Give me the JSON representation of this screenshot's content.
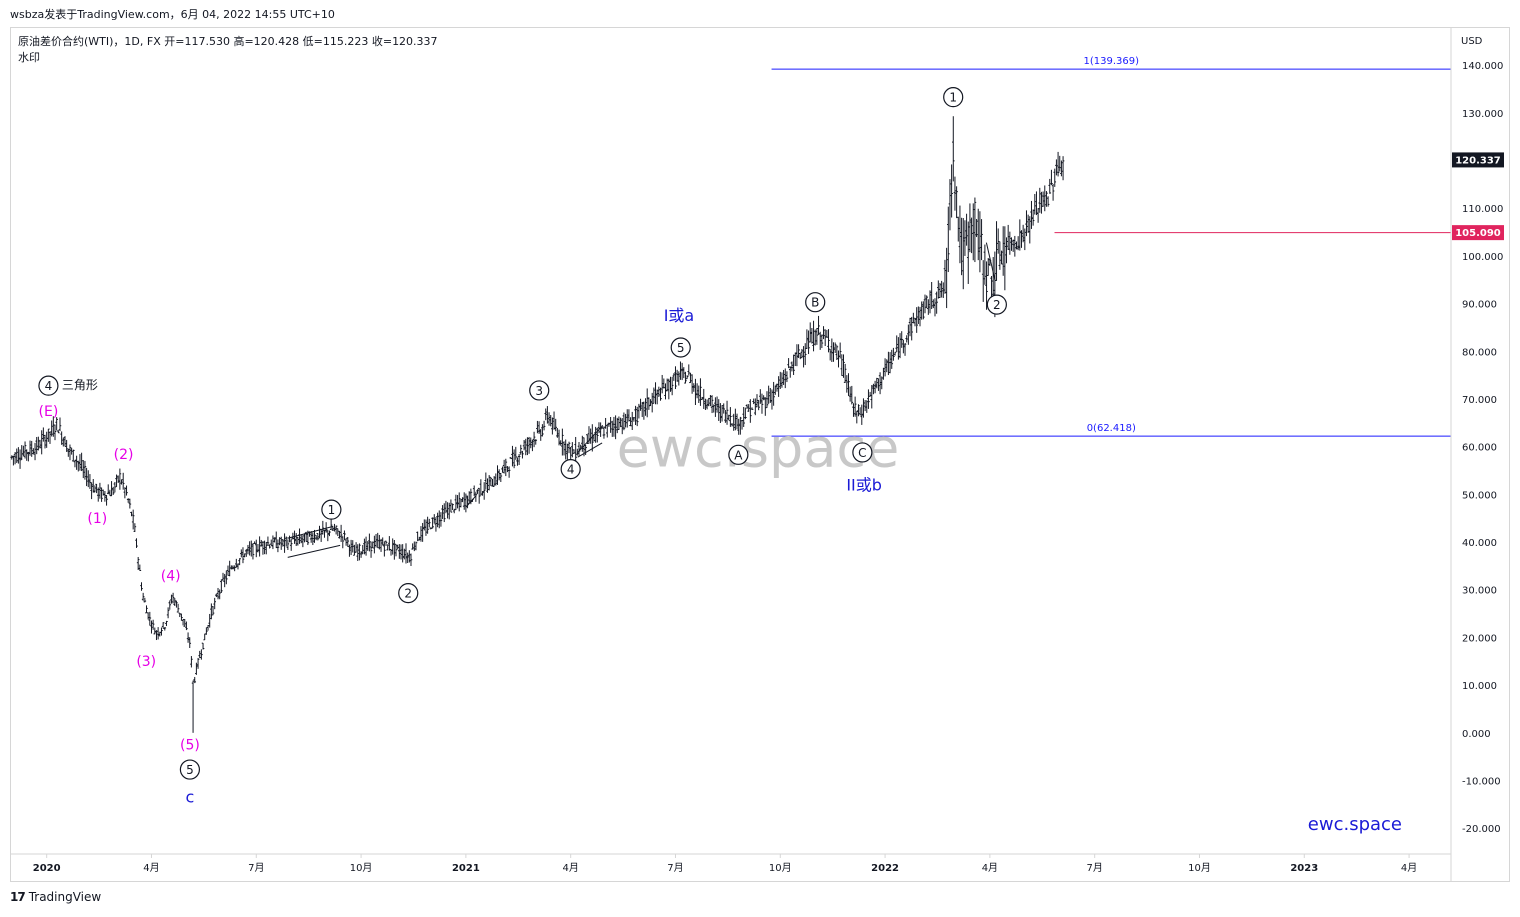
{
  "header": {
    "text": "wsbza发表于TradingView.com，6月 04, 2022 14:55 UTC+10"
  },
  "legend": {
    "line1": "原油差价合约(WTI)，1D, FX  开=117.530  高=120.428  低=115.223  收=120.337",
    "line2": "水印"
  },
  "footer": {
    "brand": "TradingView",
    "logo": "17"
  },
  "colors": {
    "fib": "#1a1aff",
    "price_line": "#e0245e",
    "magenta": "#e600e6",
    "blue_label": "#1a1ad6",
    "candle": "#131722",
    "watermark": "#c8c8c8"
  },
  "chart_data": {
    "type": "candlestick",
    "instrument": "原油差价合约(WTI)",
    "interval": "1D",
    "currency": "USD",
    "ylim": [
      -25,
      148
    ],
    "y_ticks": [
      "140.000",
      "130.000",
      "120.000",
      "110.000",
      "100.000",
      "90.000",
      "80.000",
      "70.000",
      "60.000",
      "50.000",
      "40.000",
      "30.000",
      "20.000",
      "10.000",
      "0.000",
      "-10.000",
      "-20.000"
    ],
    "y_tick_values": [
      140,
      130,
      120,
      110,
      100,
      90,
      80,
      70,
      60,
      50,
      40,
      30,
      20,
      10,
      0,
      -10,
      -20
    ],
    "x_ticks": [
      {
        "label": "2020",
        "t": 0,
        "bold": true
      },
      {
        "label": "4月",
        "t": 3,
        "bold": false
      },
      {
        "label": "7月",
        "t": 6,
        "bold": false
      },
      {
        "label": "10月",
        "t": 9,
        "bold": false
      },
      {
        "label": "2021",
        "t": 12,
        "bold": true
      },
      {
        "label": "4月",
        "t": 15,
        "bold": false
      },
      {
        "label": "7月",
        "t": 18,
        "bold": false
      },
      {
        "label": "10月",
        "t": 21,
        "bold": false
      },
      {
        "label": "2022",
        "t": 24,
        "bold": true
      },
      {
        "label": "4月",
        "t": 27,
        "bold": false
      },
      {
        "label": "7月",
        "t": 30,
        "bold": false
      },
      {
        "label": "10月",
        "t": 33,
        "bold": false
      },
      {
        "label": "2023",
        "t": 36,
        "bold": true
      },
      {
        "label": "4月",
        "t": 39,
        "bold": false
      }
    ],
    "x_range_months": [
      -1.05,
      40.2
    ],
    "price_path": [
      [
        -1.0,
        58
      ],
      [
        -0.3,
        60
      ],
      [
        0.1,
        63
      ],
      [
        0.3,
        65
      ],
      [
        0.6,
        60
      ],
      [
        1.0,
        56
      ],
      [
        1.3,
        52
      ],
      [
        1.6,
        50
      ],
      [
        1.9,
        51
      ],
      [
        2.1,
        54
      ],
      [
        2.3,
        50
      ],
      [
        2.5,
        44
      ],
      [
        2.65,
        35
      ],
      [
        2.75,
        29
      ],
      [
        2.95,
        24
      ],
      [
        3.15,
        21
      ],
      [
        3.4,
        23
      ],
      [
        3.6,
        29
      ],
      [
        3.9,
        24
      ],
      [
        4.1,
        19
      ],
      [
        4.2,
        10
      ],
      [
        4.3,
        14
      ],
      [
        4.45,
        18
      ],
      [
        4.7,
        25
      ],
      [
        5.0,
        31
      ],
      [
        5.3,
        35
      ],
      [
        5.7,
        38
      ],
      [
        6.0,
        39
      ],
      [
        6.3,
        40
      ],
      [
        6.8,
        40
      ],
      [
        7.4,
        41
      ],
      [
        7.9,
        42
      ],
      [
        8.2,
        43
      ],
      [
        8.55,
        41
      ],
      [
        8.8,
        38
      ],
      [
        9.1,
        39
      ],
      [
        9.5,
        40
      ],
      [
        9.9,
        39
      ],
      [
        10.2,
        38
      ],
      [
        10.4,
        37
      ],
      [
        10.6,
        41
      ],
      [
        11.0,
        44
      ],
      [
        11.5,
        47
      ],
      [
        12.0,
        49
      ],
      [
        12.4,
        51
      ],
      [
        12.8,
        53
      ],
      [
        13.3,
        57
      ],
      [
        13.8,
        61
      ],
      [
        14.2,
        64
      ],
      [
        14.35,
        67
      ],
      [
        14.6,
        63
      ],
      [
        14.9,
        60
      ],
      [
        15.1,
        59
      ],
      [
        15.4,
        61
      ],
      [
        15.8,
        63
      ],
      [
        16.3,
        65
      ],
      [
        16.8,
        66
      ],
      [
        17.3,
        70
      ],
      [
        17.8,
        73
      ],
      [
        18.1,
        75
      ],
      [
        18.4,
        75
      ],
      [
        18.6,
        72
      ],
      [
        18.9,
        70
      ],
      [
        19.2,
        68
      ],
      [
        19.5,
        67
      ],
      [
        19.8,
        65
      ],
      [
        20.1,
        68
      ],
      [
        20.6,
        70
      ],
      [
        21.0,
        73
      ],
      [
        21.4,
        78
      ],
      [
        21.8,
        82
      ],
      [
        22.1,
        84
      ],
      [
        22.4,
        82
      ],
      [
        22.7,
        79
      ],
      [
        22.95,
        73
      ],
      [
        23.1,
        68
      ],
      [
        23.3,
        67
      ],
      [
        23.6,
        71
      ],
      [
        24.0,
        76
      ],
      [
        24.4,
        81
      ],
      [
        24.8,
        86
      ],
      [
        25.2,
        90
      ],
      [
        25.5,
        92
      ],
      [
        25.75,
        94
      ],
      [
        25.85,
        110
      ],
      [
        25.95,
        123
      ],
      [
        26.05,
        112
      ],
      [
        26.2,
        100
      ],
      [
        26.4,
        104
      ],
      [
        26.55,
        109
      ],
      [
        26.7,
        102
      ],
      [
        26.9,
        97
      ],
      [
        27.1,
        95
      ],
      [
        27.3,
        101
      ],
      [
        27.6,
        103
      ],
      [
        27.9,
        104
      ],
      [
        28.2,
        108
      ],
      [
        28.4,
        111
      ],
      [
        28.7,
        113
      ],
      [
        28.9,
        118
      ],
      [
        29.1,
        120
      ]
    ],
    "last_price": {
      "label": "120.337",
      "value": 120.337
    },
    "price_line": {
      "label": "105.090",
      "value": 105.09,
      "from_t": 28.85
    },
    "fib_levels": [
      {
        "label": "1(139.369)",
        "value": 139.369,
        "from_t": 20.75
      },
      {
        "label": "0(62.418)",
        "value": 62.418,
        "from_t": 20.75
      }
    ],
    "trend_lines": [
      {
        "t1": 6.9,
        "v1": 41,
        "t2": 8.2,
        "v2": 43.5
      },
      {
        "t1": 6.9,
        "v1": 37,
        "t2": 8.4,
        "v2": 39.5
      },
      {
        "t1": 15.2,
        "v1": 59,
        "t2": 15.9,
        "v2": 64.5
      },
      {
        "t1": 15.2,
        "v1": 58,
        "t2": 15.9,
        "v2": 61
      },
      {
        "t1": 12.0,
        "v1": 47.5,
        "t2": 12.3,
        "v2": 50
      },
      {
        "t1": 26.9,
        "v1": 103,
        "t2": 27.15,
        "v2": 95
      }
    ],
    "annotations": [
      {
        "text": "4",
        "circle": true,
        "t": 0.05,
        "v": 73,
        "color": "#131722"
      },
      {
        "text": "三角形",
        "circle": false,
        "t": 0.95,
        "v": 73,
        "color": "#131722",
        "size": 12
      },
      {
        "text": "(E)",
        "circle": false,
        "t": 0.05,
        "v": 67.5,
        "color": "#e600e6",
        "size": 14
      },
      {
        "text": "(2)",
        "circle": false,
        "t": 2.2,
        "v": 58.5,
        "color": "#e600e6",
        "size": 14
      },
      {
        "text": "(1)",
        "circle": false,
        "t": 1.45,
        "v": 45,
        "color": "#e600e6",
        "size": 14
      },
      {
        "text": "(4)",
        "circle": false,
        "t": 3.55,
        "v": 33,
        "color": "#e600e6",
        "size": 14
      },
      {
        "text": "(3)",
        "circle": false,
        "t": 2.85,
        "v": 15,
        "color": "#e600e6",
        "size": 14
      },
      {
        "text": "(5)",
        "circle": false,
        "t": 4.1,
        "v": -2.5,
        "color": "#e600e6",
        "size": 14
      },
      {
        "text": "5",
        "circle": true,
        "t": 4.1,
        "v": -7.5,
        "color": "#131722"
      },
      {
        "text": "c",
        "circle": false,
        "t": 4.1,
        "v": -13.5,
        "color": "#1a1ad6",
        "size": 16
      },
      {
        "text": "1",
        "circle": true,
        "t": 8.15,
        "v": 47,
        "color": "#131722"
      },
      {
        "text": "2",
        "circle": true,
        "t": 10.35,
        "v": 29.5,
        "color": "#131722"
      },
      {
        "text": "3",
        "circle": true,
        "t": 14.1,
        "v": 72,
        "color": "#131722"
      },
      {
        "text": "4",
        "circle": true,
        "t": 15.0,
        "v": 55.5,
        "color": "#131722"
      },
      {
        "text": "5",
        "circle": true,
        "t": 18.15,
        "v": 81,
        "color": "#131722"
      },
      {
        "text": "I或a",
        "circle": false,
        "t": 18.1,
        "v": 87.5,
        "color": "#1a1ad6",
        "size": 16
      },
      {
        "text": "A",
        "circle": true,
        "t": 19.8,
        "v": 58.5,
        "color": "#131722"
      },
      {
        "text": "B",
        "circle": true,
        "t": 22.0,
        "v": 90.5,
        "color": "#131722"
      },
      {
        "text": "C",
        "circle": true,
        "t": 23.35,
        "v": 59,
        "color": "#131722"
      },
      {
        "text": "II或b",
        "circle": false,
        "t": 23.4,
        "v": 52,
        "color": "#1a1ad6",
        "size": 16
      },
      {
        "text": "1",
        "circle": true,
        "t": 25.95,
        "v": 133.5,
        "color": "#131722"
      },
      {
        "text": "2",
        "circle": true,
        "t": 27.2,
        "v": 90,
        "color": "#131722"
      }
    ],
    "watermark_center": "ewc.space",
    "watermark_corner": "ewc.space"
  }
}
